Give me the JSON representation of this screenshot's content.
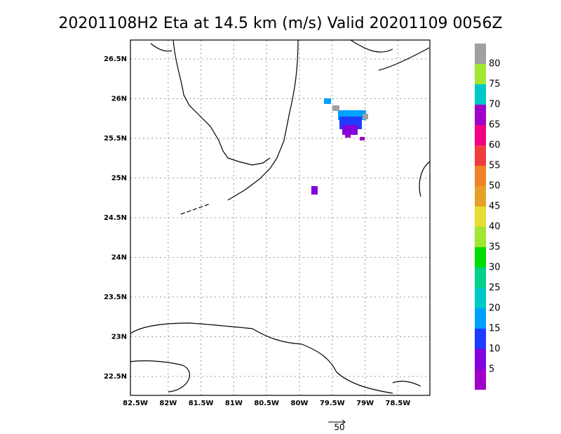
{
  "title": "20201108H2 Eta at 14.5 km (m/s) Valid 20201109 0056Z",
  "lon_labels": [
    "82.5W",
    "82W",
    "81.5W",
    "81W",
    "80.5W",
    "80W",
    "79.5W",
    "79W",
    "78.5W"
  ],
  "lat_labels": [
    "26.5N",
    "26N",
    "25.5N",
    "25N",
    "24.5N",
    "24N",
    "23.5N",
    "23N",
    "22.5N"
  ],
  "colorbar": {
    "labels": [
      80,
      75,
      70,
      65,
      60,
      55,
      50,
      45,
      40,
      35,
      30,
      25,
      20,
      15,
      10,
      5
    ],
    "colors": [
      "#a0a0a0",
      "#a0e632",
      "#00c8c8",
      "#a000c8",
      "#f00082",
      "#f03c3c",
      "#f08228",
      "#e6a028",
      "#e6dc32",
      "#a0e632",
      "#00dc00",
      "#00d28c",
      "#00c8c8",
      "#00a0ff",
      "#1e3cff",
      "#8200dc",
      "#a000c8"
    ]
  },
  "vector_key": "50"
}
